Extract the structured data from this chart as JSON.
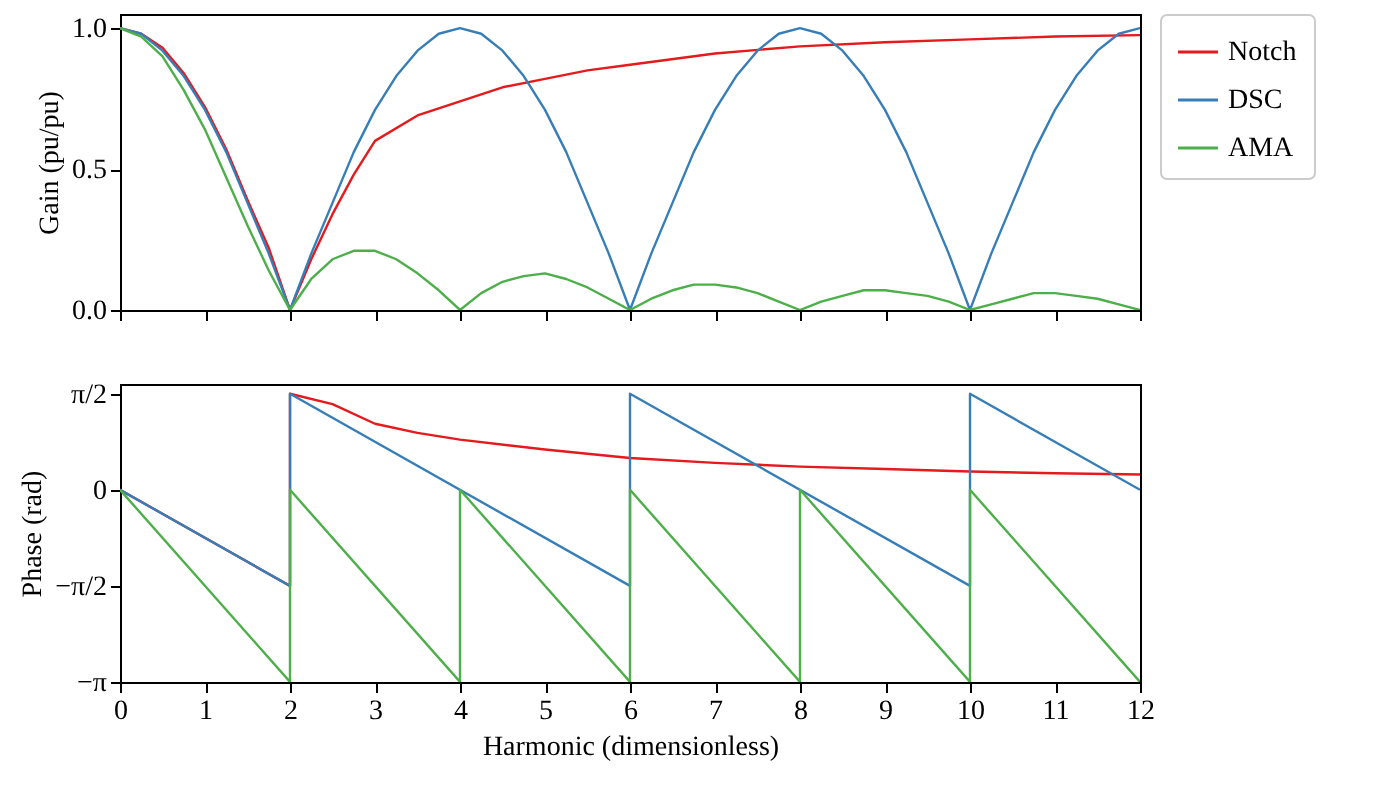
{
  "chart_data": [
    {
      "type": "line",
      "ylabel": "Gain (pu/pu)",
      "xlim": [
        0,
        12
      ],
      "xticks": [
        0,
        1,
        2,
        3,
        4,
        5,
        6,
        7,
        8,
        9,
        10,
        11,
        12
      ],
      "ylim": [
        0,
        1.05
      ],
      "yticks": [
        {
          "value": 0,
          "label": "0.0"
        },
        {
          "value": 0.5,
          "label": "0.5"
        },
        {
          "value": 1,
          "label": "1.0"
        }
      ],
      "tick_labels": "y",
      "grid": false,
      "legend": "right",
      "marker": "none",
      "line_style": "solid",
      "series": [
        {
          "name": "Notch",
          "color": "#e41a1c",
          "x": [
            0,
            0.25,
            0.5,
            0.75,
            1,
            1.25,
            1.5,
            1.75,
            2,
            2.25,
            2.5,
            2.75,
            3,
            3.5,
            4,
            4.5,
            5,
            5.5,
            6,
            7,
            8,
            9,
            10,
            11,
            12
          ],
          "values": [
            1,
            0.98,
            0.93,
            0.84,
            0.72,
            0.57,
            0.39,
            0.22,
            0,
            0.18,
            0.34,
            0.48,
            0.6,
            0.69,
            0.74,
            0.79,
            0.82,
            0.85,
            0.87,
            0.91,
            0.935,
            0.95,
            0.96,
            0.97,
            0.975
          ]
        },
        {
          "name": "DSC",
          "color": "#377eb8",
          "x": [
            0,
            0.25,
            0.5,
            0.75,
            1,
            1.25,
            1.5,
            1.75,
            2,
            2.25,
            2.5,
            2.75,
            3,
            3.25,
            3.5,
            3.75,
            4,
            4.25,
            4.5,
            4.75,
            5,
            5.25,
            5.5,
            5.75,
            6,
            6.25,
            6.5,
            6.75,
            7,
            7.25,
            7.5,
            7.75,
            8,
            8.25,
            8.5,
            8.75,
            9,
            9.25,
            9.5,
            9.75,
            10,
            10.25,
            10.5,
            10.75,
            11,
            11.25,
            11.5,
            11.75,
            12
          ],
          "values": [
            1,
            0.98,
            0.92,
            0.83,
            0.71,
            0.56,
            0.38,
            0.2,
            0,
            0.2,
            0.38,
            0.56,
            0.71,
            0.83,
            0.92,
            0.98,
            1,
            0.98,
            0.92,
            0.83,
            0.71,
            0.56,
            0.38,
            0.2,
            0,
            0.2,
            0.38,
            0.56,
            0.71,
            0.83,
            0.92,
            0.98,
            1,
            0.98,
            0.92,
            0.83,
            0.71,
            0.56,
            0.38,
            0.2,
            0,
            0.2,
            0.38,
            0.56,
            0.71,
            0.83,
            0.92,
            0.98,
            1
          ]
        },
        {
          "name": "AMA",
          "color": "#4daf4a",
          "x": [
            0,
            0.25,
            0.5,
            0.75,
            1,
            1.25,
            1.5,
            1.75,
            2,
            2.25,
            2.5,
            2.75,
            3,
            3.25,
            3.5,
            3.75,
            4,
            4.25,
            4.5,
            4.75,
            5,
            5.25,
            5.5,
            5.75,
            6,
            6.25,
            6.5,
            6.75,
            7,
            7.25,
            7.5,
            7.75,
            8,
            8.25,
            8.5,
            8.75,
            9,
            9.25,
            9.5,
            9.75,
            10,
            10.25,
            10.5,
            10.75,
            11,
            11.25,
            11.5,
            11.75,
            12
          ],
          "values": [
            1,
            0.97,
            0.9,
            0.78,
            0.64,
            0.47,
            0.3,
            0.14,
            0,
            0.11,
            0.18,
            0.21,
            0.21,
            0.18,
            0.13,
            0.07,
            0,
            0.06,
            0.1,
            0.12,
            0.13,
            0.11,
            0.08,
            0.04,
            0,
            0.04,
            0.07,
            0.09,
            0.09,
            0.08,
            0.06,
            0.03,
            0,
            0.03,
            0.05,
            0.07,
            0.07,
            0.06,
            0.05,
            0.03,
            0,
            0.02,
            0.04,
            0.06,
            0.06,
            0.05,
            0.04,
            0.02,
            0
          ]
        }
      ]
    },
    {
      "type": "line",
      "xlabel": "Harmonic (dimensionless)",
      "ylabel": "Phase (rad)",
      "xlim": [
        0,
        12
      ],
      "xticks": [
        0,
        1,
        2,
        3,
        4,
        5,
        6,
        7,
        8,
        9,
        10,
        11,
        12
      ],
      "ylim": [
        -3.1416,
        1.73
      ],
      "yticks": [
        {
          "value": 1.5708,
          "label": "π/2"
        },
        0,
        {
          "value": -1.5708,
          "label": "−π/2"
        },
        {
          "value": -3.1416,
          "label": "−π"
        }
      ],
      "grid": false,
      "marker": "none",
      "line_style": "solid",
      "series": [
        {
          "color": "#e41a1c",
          "x": [
            0,
            2,
            2,
            2.5,
            3,
            3.5,
            4,
            5,
            6,
            7,
            8,
            9,
            10,
            11,
            12
          ],
          "values": [
            0,
            -1.57,
            1.57,
            1.4,
            1.08,
            0.93,
            0.82,
            0.66,
            0.52,
            0.44,
            0.38,
            0.34,
            0.3,
            0.27,
            0.25
          ]
        },
        {
          "color": "#377eb8",
          "x": [
            0,
            2,
            2,
            6,
            6,
            10,
            10,
            12
          ],
          "values": [
            0,
            -1.57,
            1.57,
            -1.57,
            1.57,
            -1.57,
            1.57,
            0
          ]
        },
        {
          "color": "#4daf4a",
          "x": [
            0,
            2,
            2,
            4,
            4,
            6,
            6,
            8,
            8,
            10,
            10,
            12
          ],
          "values": [
            0,
            -3.14,
            0,
            -3.14,
            0,
            -3.14,
            0,
            -3.14,
            0,
            -3.14,
            0,
            -3.14
          ]
        }
      ]
    }
  ]
}
